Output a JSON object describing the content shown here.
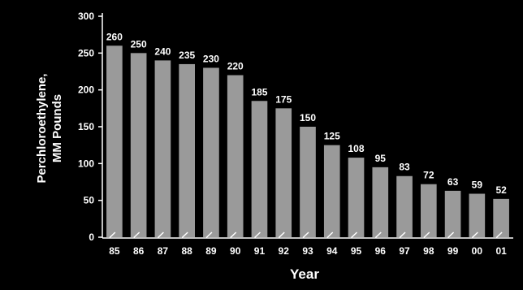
{
  "chart_data": {
    "type": "bar",
    "categories": [
      "85",
      "86",
      "87",
      "88",
      "89",
      "90",
      "91",
      "92",
      "93",
      "94",
      "95",
      "96",
      "97",
      "98",
      "99",
      "00",
      "01"
    ],
    "values": [
      260,
      250,
      240,
      235,
      230,
      220,
      185,
      175,
      150,
      125,
      108,
      95,
      83,
      72,
      63,
      59,
      52
    ],
    "xlabel": "Year",
    "ylabel_lines": [
      "Perchloroethylene,",
      "MM  Pounds"
    ],
    "ylim": [
      0,
      300
    ],
    "yticks": [
      0,
      50,
      100,
      150,
      200,
      250,
      300
    ],
    "grid": false,
    "background_color": "#000000",
    "bar_color": "#9a9a9a",
    "text_color": "#ffffff"
  }
}
